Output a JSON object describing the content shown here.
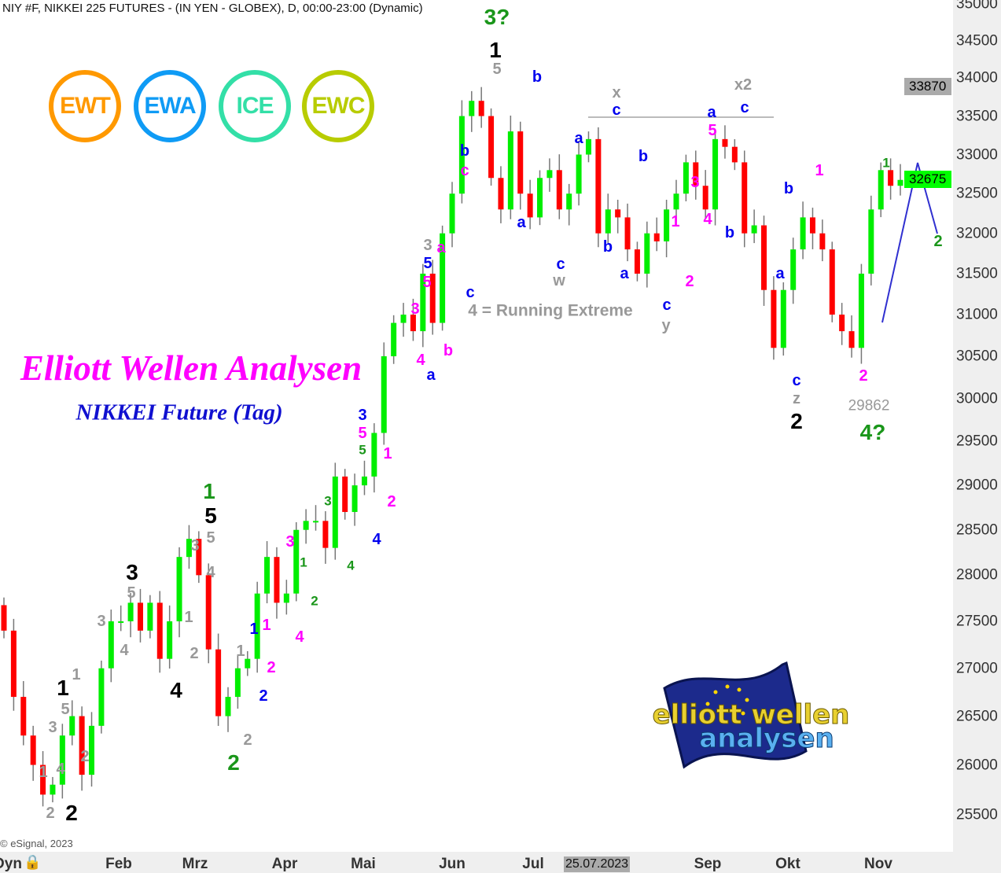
{
  "header": {
    "title": "NIY #F, NIKKEI 225 FUTURES - (IN YEN - GLOBEX), D, 00:00-23:00 (Dynamic)"
  },
  "badges": [
    {
      "text": "EWT",
      "color": "#ff9900"
    },
    {
      "text": "EWA",
      "color": "#0f9bf5"
    },
    {
      "text": "ICE",
      "color": "#33dfa7"
    },
    {
      "text": "EWC",
      "color": "#b8cc00"
    }
  ],
  "titles": {
    "main": "Elliott Wellen Analysen",
    "sub": "NIKKEI Future (Tag)"
  },
  "logo": {
    "line1": "elliott wellen",
    "line2": "analysen"
  },
  "copyright": "© eSignal, 2023",
  "axis": {
    "y_ticks": [
      "35000",
      "34500",
      "34000",
      "33500",
      "33000",
      "32500",
      "32000",
      "31500",
      "31000",
      "30500",
      "30000",
      "29500",
      "29000",
      "28500",
      "28000",
      "27500",
      "27000",
      "26500",
      "26000",
      "25500"
    ],
    "x_ticks": [
      "Feb",
      "Mrz",
      "Apr",
      "Mai",
      "Jun",
      "Jul",
      "Sep",
      "Okt",
      "Nov"
    ],
    "x_left_label": "Dyn",
    "cursor_date": "25.07.2023",
    "price_tags": {
      "high": "33870",
      "last": "32675"
    }
  },
  "colors": {
    "up": "#00ee00",
    "down": "#ff0000",
    "wick": "#777777",
    "projection": "#3030d0"
  },
  "chart_data": {
    "type": "candlestick",
    "scale": "log",
    "ylim": [
      25500,
      35000
    ],
    "x_range": [
      "Jan 2023",
      "Nov 2023"
    ],
    "closes": [
      27400,
      26700,
      26300,
      26000,
      25700,
      25800,
      26300,
      26500,
      25900,
      26400,
      27000,
      27500,
      27500,
      27700,
      27400,
      27700,
      27100,
      27500,
      28200,
      28400,
      28000,
      27200,
      26500,
      26700,
      27000,
      27100,
      27800,
      28200,
      27700,
      27800,
      28500,
      28600,
      28600,
      28300,
      29100,
      28700,
      29000,
      29100,
      29600,
      30500,
      30900,
      31000,
      30800,
      31500,
      30900,
      32000,
      32500,
      33500,
      33700,
      33500,
      32700,
      32300,
      33300,
      32500,
      32200,
      32700,
      32800,
      32300,
      32500,
      33000,
      33200,
      32000,
      32300,
      32200,
      31800,
      31500,
      32000,
      31900,
      32300,
      32500,
      32900,
      32600,
      32300,
      33200,
      33100,
      32900,
      32000,
      32100,
      31300,
      30600,
      31300,
      31800,
      32200,
      32000,
      31800,
      31000,
      30800,
      30600,
      31500,
      32300,
      32800,
      32600,
      32675
    ],
    "high_marker": 33870,
    "low_marker": 29862,
    "last": 32675,
    "annotations": {
      "running_extreme": "4 = Running Extreme",
      "low_value": "29862"
    }
  },
  "wave_labels": [
    {
      "t": "3?",
      "c": "#1a961a",
      "s": "big"
    },
    {
      "t": "1",
      "c": "#000",
      "s": "big"
    },
    {
      "t": "5",
      "c": "#999",
      "s": "m"
    },
    {
      "t": "b",
      "c": "#0000ee",
      "s": "m"
    },
    {
      "t": "x",
      "c": "#999",
      "s": "m"
    },
    {
      "t": "c",
      "c": "#0000ee",
      "s": "m"
    },
    {
      "t": "x2",
      "c": "#999",
      "s": "m"
    },
    {
      "t": "a",
      "c": "#0000ee",
      "s": "m"
    },
    {
      "t": "c",
      "c": "#0000ee",
      "s": "m"
    },
    {
      "t": "5",
      "c": "#ff00ff",
      "s": "m"
    },
    {
      "t": "a",
      "c": "#0000ee",
      "s": "m"
    },
    {
      "t": "b",
      "c": "#0000ee",
      "s": "m"
    },
    {
      "t": "b",
      "c": "#0000ee",
      "s": "m"
    },
    {
      "t": "c",
      "c": "#ff00ff",
      "s": "m"
    },
    {
      "t": "3",
      "c": "#ff00ff",
      "s": "m"
    },
    {
      "t": "4",
      "c": "#ff00ff",
      "s": "m"
    },
    {
      "t": "b",
      "c": "#0000ee",
      "s": "m"
    },
    {
      "t": "1",
      "c": "#ff00ff",
      "s": "m"
    },
    {
      "t": "2",
      "c": "#ff00ff",
      "s": "m"
    },
    {
      "t": "c",
      "c": "#0000ee",
      "s": "m"
    },
    {
      "t": "y",
      "c": "#999",
      "s": "m"
    },
    {
      "t": "a",
      "c": "#0000ee",
      "s": "m"
    },
    {
      "t": "c",
      "c": "#0000ee",
      "s": "m"
    },
    {
      "t": "w",
      "c": "#999",
      "s": "m"
    },
    {
      "t": "b",
      "c": "#0000ee",
      "s": "m"
    },
    {
      "t": "a",
      "c": "#0000ee",
      "s": "m"
    },
    {
      "t": "3",
      "c": "#999",
      "s": "m"
    },
    {
      "t": "a",
      "c": "#ff00ff",
      "s": "m"
    },
    {
      "t": "5",
      "c": "#0000ee",
      "s": "m"
    },
    {
      "t": "5",
      "c": "#ff00ff",
      "s": "m"
    },
    {
      "t": "c",
      "c": "#0000ee",
      "s": "m"
    },
    {
      "t": "3",
      "c": "#ff00ff",
      "s": "m"
    },
    {
      "t": "b",
      "c": "#ff00ff",
      "s": "m"
    },
    {
      "t": "4",
      "c": "#ff00ff",
      "s": "m"
    },
    {
      "t": "a",
      "c": "#0000ee",
      "s": "m"
    },
    {
      "t": "b",
      "c": "#0000ee",
      "s": "m"
    },
    {
      "t": "a",
      "c": "#0000ee",
      "s": "m"
    },
    {
      "t": "1",
      "c": "#ff00ff",
      "s": "m"
    },
    {
      "t": "1",
      "c": "#1a961a",
      "s": "s"
    },
    {
      "t": "2",
      "c": "#1a961a",
      "s": "m"
    },
    {
      "t": "c",
      "c": "#0000ee",
      "s": "m"
    },
    {
      "t": "z",
      "c": "#999",
      "s": "m"
    },
    {
      "t": "2",
      "c": "#000",
      "s": "big"
    },
    {
      "t": "2",
      "c": "#ff00ff",
      "s": "m"
    },
    {
      "t": "4?",
      "c": "#1a961a",
      "s": "big"
    },
    {
      "t": "3",
      "c": "#0000ee",
      "s": "m"
    },
    {
      "t": "5",
      "c": "#ff00ff",
      "s": "m"
    },
    {
      "t": "5",
      "c": "#1a961a",
      "s": "s"
    },
    {
      "t": "1",
      "c": "#ff00ff",
      "s": "m"
    },
    {
      "t": "2",
      "c": "#ff00ff",
      "s": "m"
    },
    {
      "t": "4",
      "c": "#0000ee",
      "s": "m"
    },
    {
      "t": "3",
      "c": "#1a961a",
      "s": "s"
    },
    {
      "t": "4",
      "c": "#1a961a",
      "s": "s"
    },
    {
      "t": "3",
      "c": "#ff00ff",
      "s": "m"
    },
    {
      "t": "1",
      "c": "#1a961a",
      "s": "s"
    },
    {
      "t": "2",
      "c": "#1a961a",
      "s": "s"
    },
    {
      "t": "4",
      "c": "#ff00ff",
      "s": "m"
    },
    {
      "t": "1",
      "c": "#0000ee",
      "s": "m"
    },
    {
      "t": "1",
      "c": "#ff00ff",
      "s": "m"
    },
    {
      "t": "2",
      "c": "#ff00ff",
      "s": "m"
    },
    {
      "t": "2",
      "c": "#0000ee",
      "s": "m"
    },
    {
      "t": "2",
      "c": "#999",
      "s": "m"
    },
    {
      "t": "2",
      "c": "#1a961a",
      "s": "big"
    },
    {
      "t": "1",
      "c": "#999",
      "s": "m"
    },
    {
      "t": "1",
      "c": "#1a961a",
      "s": "big"
    },
    {
      "t": "5",
      "c": "#000",
      "s": "big"
    },
    {
      "t": "5",
      "c": "#999",
      "s": "m"
    },
    {
      "t": "3",
      "c": "#999",
      "s": "m"
    },
    {
      "t": "4",
      "c": "#999",
      "s": "m"
    },
    {
      "t": "3",
      "c": "#000",
      "s": "big"
    },
    {
      "t": "5",
      "c": "#999",
      "s": "m"
    },
    {
      "t": "3",
      "c": "#999",
      "s": "m"
    },
    {
      "t": "4",
      "c": "#999",
      "s": "m"
    },
    {
      "t": "1",
      "c": "#999",
      "s": "m"
    },
    {
      "t": "2",
      "c": "#999",
      "s": "m"
    },
    {
      "t": "4",
      "c": "#000",
      "s": "big"
    },
    {
      "t": "1",
      "c": "#000",
      "s": "big"
    },
    {
      "t": "5",
      "c": "#999",
      "s": "m"
    },
    {
      "t": "1",
      "c": "#999",
      "s": "m"
    },
    {
      "t": "3",
      "c": "#999",
      "s": "m"
    },
    {
      "t": "2",
      "c": "#999",
      "s": "m"
    },
    {
      "t": "4",
      "c": "#999",
      "s": "m"
    },
    {
      "t": "1",
      "c": "#999",
      "s": "m"
    },
    {
      "t": "2",
      "c": "#999",
      "s": "m"
    },
    {
      "t": "2",
      "c": "#000",
      "s": "big"
    }
  ]
}
